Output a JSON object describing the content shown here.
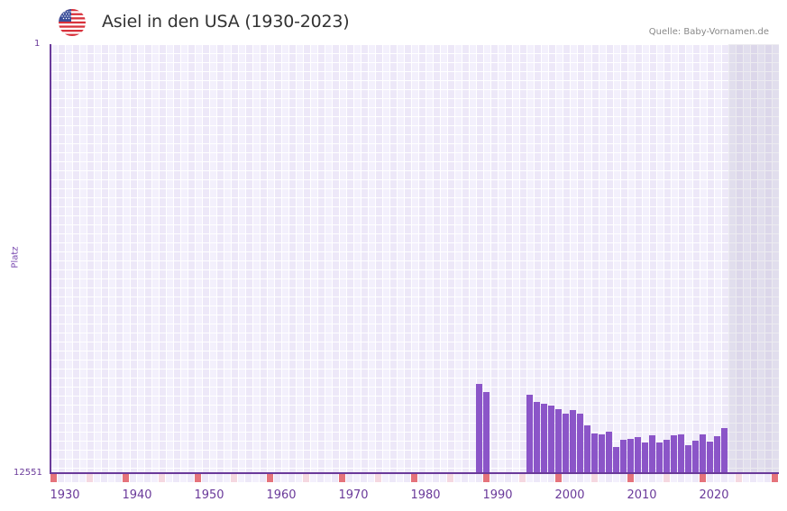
{
  "header": {
    "title": "Asiel in den USA (1930-2023)",
    "source": "Quelle: Baby-Vornamen.de",
    "flag_icon": "us-flag-icon"
  },
  "axes": {
    "y_top_label": "1",
    "y_bottom_label": "12551",
    "y_title": "Platz",
    "x_ticks": [
      "1930",
      "1940",
      "1950",
      "1960",
      "1970",
      "1980",
      "1990",
      "2000",
      "2010",
      "2020"
    ]
  },
  "colors": {
    "bar": "#8b55c8",
    "axis": "#6a3a9a",
    "grid_a": "#ede8f8",
    "grid_b": "#f3f0fc",
    "marker_decade": "#e5737b",
    "marker_half": "#f5d8e0"
  },
  "chart_data": {
    "type": "bar",
    "title": "Asiel in den USA (1930-2023)",
    "xlabel": "",
    "ylabel": "Platz",
    "ylim": [
      12551,
      1
    ],
    "y_inverted": true,
    "x_range": [
      1928,
      2028
    ],
    "projection_shaded_from": 2022,
    "categories": [
      "1987",
      "1988",
      "1994",
      "1995",
      "1996",
      "1997",
      "1998",
      "1999",
      "2000",
      "2001",
      "2002",
      "2003",
      "2004",
      "2005",
      "2006",
      "2007",
      "2008",
      "2009",
      "2010",
      "2011",
      "2012",
      "2013",
      "2014",
      "2015",
      "2016",
      "2017",
      "2018",
      "2019",
      "2020",
      "2021"
    ],
    "values": [
      9940,
      10177,
      10256,
      10467,
      10520,
      10573,
      10678,
      10810,
      10705,
      10810,
      11153,
      11390,
      11417,
      11337,
      11786,
      11575,
      11548,
      11496,
      11654,
      11443,
      11654,
      11575,
      11443,
      11417,
      11733,
      11601,
      11417,
      11628,
      11470,
      11232
    ],
    "grid": true,
    "legend": null
  }
}
